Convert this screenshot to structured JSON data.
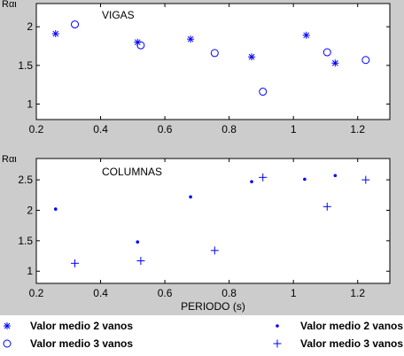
{
  "colors": {
    "figure_background": "#cccccc",
    "axes_background": "#ffffff",
    "axis_color": "#000000",
    "marker_color": "#0000ff"
  },
  "chart_data": [
    {
      "type": "scatter",
      "ylabel": "Rαι",
      "annotation": "VIGAS",
      "xlim": [
        0.2,
        1.3
      ],
      "ylim": [
        0.8,
        2.3
      ],
      "xticks": [
        "0.2",
        "0.4",
        "0.6",
        "0.8",
        "1",
        "1.2"
      ],
      "yticks": [
        "1",
        "1.5",
        "2"
      ],
      "grid": false,
      "series": [
        {
          "marker": "asterisk",
          "points": [
            [
              0.26,
              1.91
            ],
            [
              0.515,
              1.8
            ],
            [
              0.68,
              1.84
            ],
            [
              0.87,
              1.61
            ],
            [
              1.04,
              1.89
            ],
            [
              1.13,
              1.53
            ]
          ]
        },
        {
          "marker": "circle",
          "points": [
            [
              0.32,
              2.03
            ],
            [
              0.525,
              1.76
            ],
            [
              0.755,
              1.66
            ],
            [
              0.905,
              1.16
            ],
            [
              1.105,
              1.67
            ],
            [
              1.225,
              1.57
            ]
          ]
        }
      ]
    },
    {
      "type": "scatter",
      "ylabel": "Rαι",
      "annotation": "COLUMNAS",
      "xlabel": "PERIODO (s)",
      "xlim": [
        0.2,
        1.3
      ],
      "ylim": [
        0.8,
        2.85
      ],
      "xticks": [
        "0.2",
        "0.4",
        "0.6",
        "0.8",
        "1",
        "1.2"
      ],
      "yticks": [
        "1",
        "1.5",
        "2",
        "2.5"
      ],
      "grid": false,
      "series": [
        {
          "marker": "dot",
          "points": [
            [
              0.26,
              2.02
            ],
            [
              0.515,
              1.48
            ],
            [
              0.68,
              2.22
            ],
            [
              0.87,
              2.47
            ],
            [
              1.035,
              2.51
            ],
            [
              1.13,
              2.57
            ]
          ]
        },
        {
          "marker": "plus",
          "points": [
            [
              0.32,
              1.13
            ],
            [
              0.525,
              1.17
            ],
            [
              0.755,
              1.34
            ],
            [
              0.905,
              2.54
            ],
            [
              1.105,
              2.06
            ],
            [
              1.225,
              2.5
            ]
          ]
        }
      ]
    }
  ],
  "legend": {
    "placement": "bottom",
    "items": [
      {
        "marker": "asterisk",
        "label": "Valor medio 2 vanos"
      },
      {
        "marker": "circle",
        "label": "Valor medio 3 vanos"
      },
      {
        "marker": "dot",
        "label": "Valor medio 2 vanos"
      },
      {
        "marker": "plus",
        "label": "Valor medio 3 vanos"
      }
    ]
  }
}
